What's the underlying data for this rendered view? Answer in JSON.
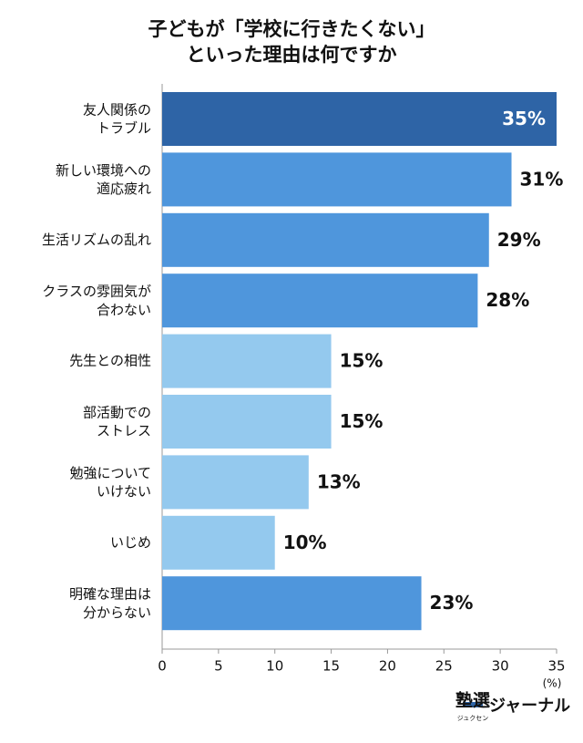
{
  "chart_data": {
    "type": "barh",
    "title": "子どもが「学校に行きたくない」\nといった理由は何ですか",
    "categories": [
      "友人関係の\nトラブル",
      "新しい環境への\n適応疲れ",
      "生活リズムの乱れ",
      "クラスの雰囲気が\n合わない",
      "先生との相性",
      "部活動での\nストレス",
      "勉強について\nいけない",
      "いじめ",
      "明確な理由は\n分からない"
    ],
    "values": [
      35,
      31,
      29,
      28,
      15,
      15,
      13,
      10,
      23
    ],
    "value_labels": [
      "35%",
      "31%",
      "29%",
      "28%",
      "15%",
      "15%",
      "13%",
      "10%",
      "23%"
    ],
    "colors": [
      "#2e64a6",
      "#4f96dc",
      "#4f96dc",
      "#4f96dc",
      "#94c9ee",
      "#94c9ee",
      "#94c9ee",
      "#94c9ee",
      "#4f96dc"
    ],
    "xlim": [
      0,
      35
    ],
    "xticks": [
      0,
      5,
      10,
      15,
      20,
      25,
      30,
      35
    ],
    "x_unit": "(%)",
    "logo": {
      "main": "塾選",
      "sub": "ジュクセン",
      "suffix": "ジャーナル"
    }
  }
}
